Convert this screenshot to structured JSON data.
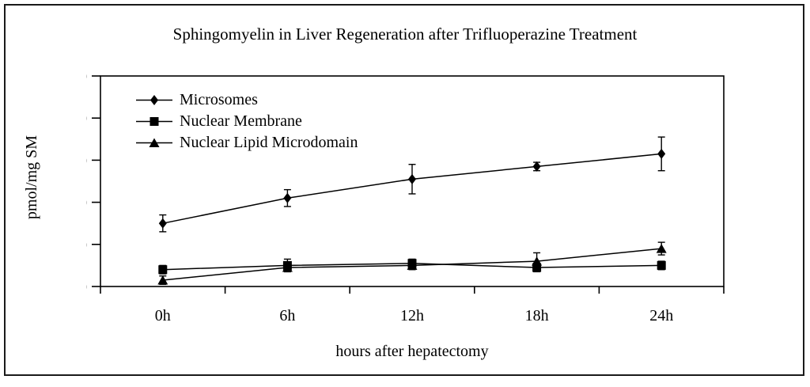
{
  "chart_data": {
    "type": "line",
    "title": "Sphingomyelin in Liver Regeneration after Trifluoperazine Treatment",
    "xlabel": "hours after hepatectomy",
    "ylabel": "pmol/mg SM",
    "categories": [
      "0h",
      "6h",
      "12h",
      "18h",
      "24h"
    ],
    "ylim": [
      0,
      100
    ],
    "yticks": [
      0,
      20,
      40,
      60,
      80,
      100
    ],
    "grid": false,
    "legend_position": "inside-top-left",
    "line_color": "#000000",
    "background": "#ffffff",
    "series": [
      {
        "name": "Microsomes",
        "marker": "diamond",
        "values": [
          30,
          42,
          51,
          57,
          63
        ],
        "errors": [
          4,
          4,
          7,
          2,
          8
        ]
      },
      {
        "name": "Nuclear Membrane",
        "marker": "square",
        "values": [
          8,
          10,
          11,
          9,
          10
        ],
        "errors": [
          2,
          3,
          2,
          2,
          2
        ]
      },
      {
        "name": "Nuclear Lipid Microdomain",
        "marker": "triangle",
        "values": [
          3,
          9,
          10,
          12,
          18
        ],
        "errors": [
          2,
          2,
          2,
          4,
          3
        ]
      }
    ]
  }
}
